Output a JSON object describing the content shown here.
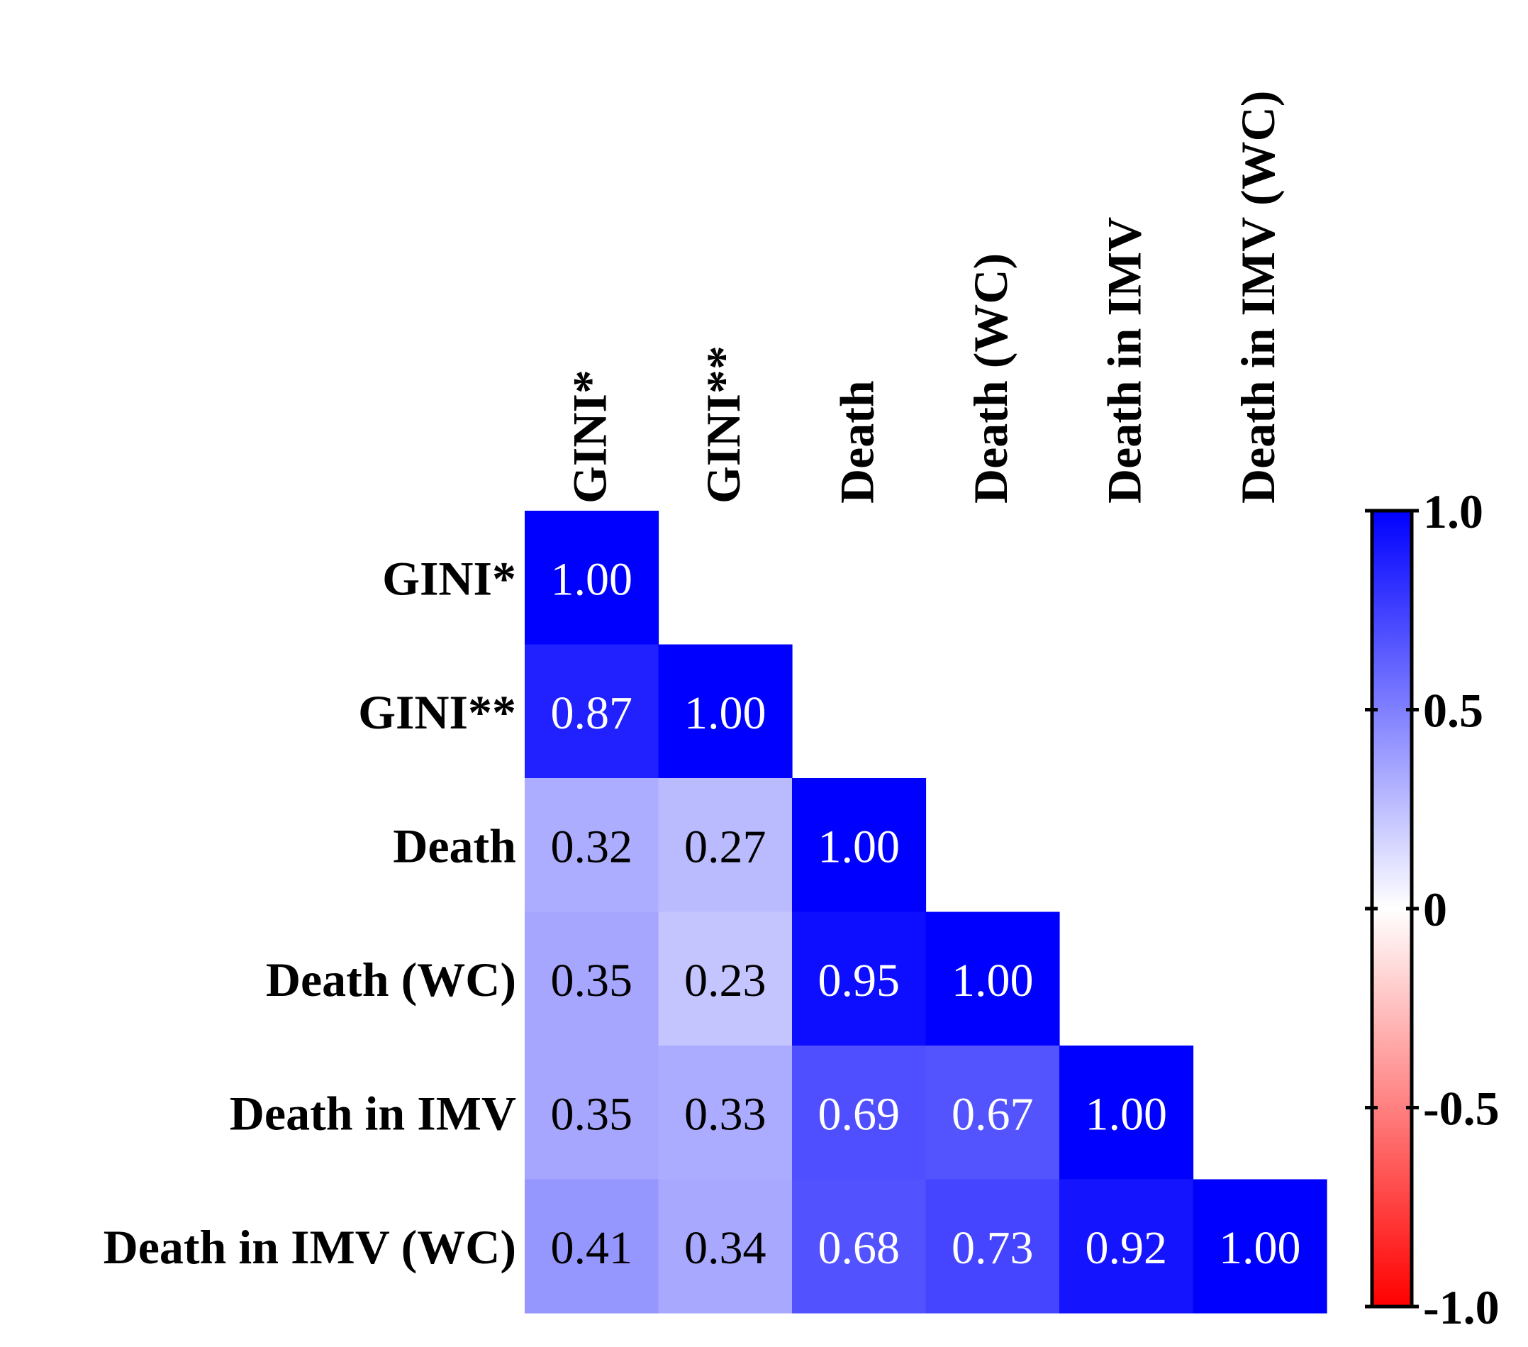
{
  "chart_data": {
    "type": "heatmap",
    "subtype": "lower-triangular correlation matrix",
    "variables": [
      "GINI*",
      "GINI**",
      "Death",
      "Death (WC)",
      "Death in IMV",
      "Death in IMV (WC)"
    ],
    "matrix": [
      [
        1.0
      ],
      [
        0.87,
        1.0
      ],
      [
        0.32,
        0.27,
        1.0
      ],
      [
        0.35,
        0.23,
        0.95,
        1.0
      ],
      [
        0.35,
        0.33,
        0.69,
        0.67,
        1.0
      ],
      [
        0.41,
        0.34,
        0.68,
        0.73,
        0.92,
        1.0
      ]
    ],
    "value_labels": [
      [
        "1.00"
      ],
      [
        "0.87",
        "1.00"
      ],
      [
        "0.32",
        "0.27",
        "1.00"
      ],
      [
        "0.35",
        "0.23",
        "0.95",
        "1.00"
      ],
      [
        "0.35",
        "0.33",
        "0.69",
        "0.67",
        "1.00"
      ],
      [
        "0.41",
        "0.34",
        "0.68",
        "0.73",
        "0.92",
        "1.00"
      ]
    ],
    "colorbar": {
      "range": [
        -1.0,
        1.0
      ],
      "ticks": [
        1.0,
        0.5,
        0,
        -0.5,
        -1.0
      ],
      "tick_labels": [
        "1.0",
        "0.5",
        "0",
        "-0.5",
        "-1.0"
      ],
      "low_color": "#ff0000",
      "mid_color": "#ffffff",
      "high_color": "#0000ff"
    },
    "legend_position": "right"
  }
}
